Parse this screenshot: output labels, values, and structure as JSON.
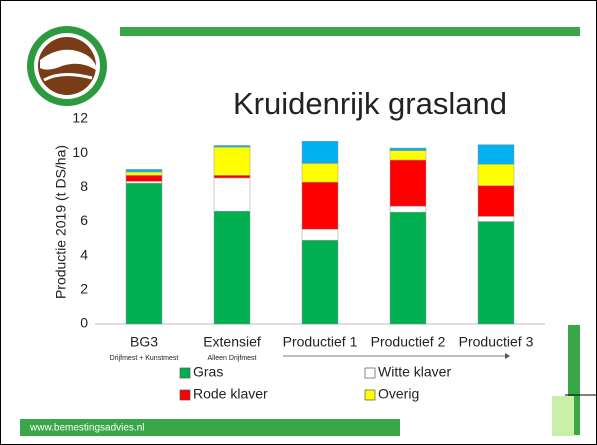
{
  "chart_data": {
    "type": "stacked_bar",
    "title": "Kruidenrijk grasland",
    "ylabel": "Productie 2019 (t DS/ha)",
    "categories": [
      "BG3",
      "Extensief",
      "Productief 1",
      "Productief 2",
      "Productief 3"
    ],
    "annotations": [
      "Drijfmest + Kunstmest",
      "Alleen Drijfmest"
    ],
    "series": [
      {
        "name": "Gras",
        "color": "#00b050",
        "values": [
          8.25,
          6.6,
          4.9,
          6.55,
          6.0
        ]
      },
      {
        "name": "Witte klaver",
        "color": "#ffffff",
        "values": [
          0.1,
          1.95,
          0.65,
          0.35,
          0.3
        ]
      },
      {
        "name": "Rode klaver",
        "color": "#ff0000",
        "values": [
          0.35,
          0.15,
          2.75,
          2.7,
          1.8
        ]
      },
      {
        "name": "Overig",
        "color": "#ffff00",
        "values": [
          0.2,
          1.65,
          1.1,
          0.55,
          1.25
        ]
      },
      {
        "color": "#00b0f0",
        "values": [
          0.15,
          0.1,
          1.3,
          0.15,
          1.15
        ]
      }
    ],
    "ylim": [
      0,
      12
    ],
    "yticks": [
      0,
      2,
      4,
      6,
      8,
      10,
      12
    ]
  },
  "footer": "www.bemestingsadvies.nl"
}
